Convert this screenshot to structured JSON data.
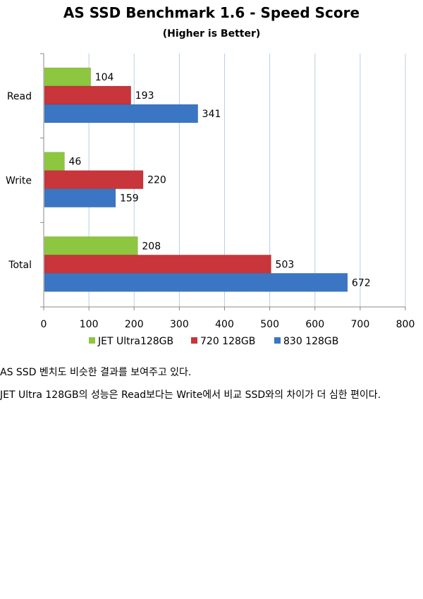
{
  "colors": {
    "JET Ultra128GB": "#8dc63f",
    "720 128GB": "#c8353a",
    "830 128GB": "#3a76c4",
    "grid": "#b8cde6",
    "axis": "#888888"
  },
  "chart_data": {
    "type": "bar",
    "orientation": "horizontal",
    "title": "AS SSD Benchmark 1.6 - Speed Score",
    "subtitle": "(Higher is Better)",
    "categories": [
      "Read",
      "Write",
      "Total"
    ],
    "series": [
      {
        "name": "JET Ultra128GB",
        "values": [
          104,
          46,
          208
        ]
      },
      {
        "name": "720 128GB",
        "values": [
          193,
          220,
          503
        ]
      },
      {
        "name": "830 128GB",
        "values": [
          341,
          159,
          672
        ]
      }
    ],
    "xlim": [
      0,
      800
    ],
    "xticks": [
      0,
      100,
      200,
      300,
      400,
      500,
      600,
      700,
      800
    ],
    "grid": true,
    "legend": "bottom",
    "xlabel": "",
    "ylabel": ""
  },
  "article": {
    "paragraph_1": "AS SSD 벤치도 비슷한 결과를 보여주고 있다.",
    "paragraph_2": "JET Ultra 128GB의 성능은 Read보다는 Write에서 비교 SSD와의 차이가 더 심한 편이다."
  }
}
